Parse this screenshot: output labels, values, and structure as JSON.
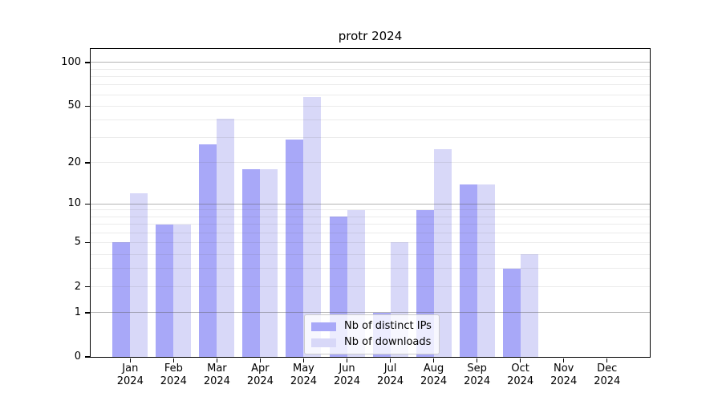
{
  "figure": {
    "title": "protr 2024",
    "background_color": "#ffffff"
  },
  "chart_data": {
    "type": "bar",
    "title": "protr 2024",
    "xlabel": "",
    "ylabel": "",
    "grid": true,
    "categories": [
      "Jan",
      "Feb",
      "Mar",
      "Apr",
      "May",
      "Jun",
      "Jul",
      "Aug",
      "Sep",
      "Oct",
      "Nov",
      "Dec"
    ],
    "x_tick_sublabel": "2024",
    "series": [
      {
        "name": "Nb of distinct IPs",
        "color": "#a8a8f8",
        "values": [
          5,
          7,
          27,
          18,
          29,
          8,
          1,
          9,
          14,
          3,
          0,
          0
        ]
      },
      {
        "name": "Nb of downloads",
        "color": "#d8d8f8",
        "values": [
          12,
          7,
          41,
          18,
          58,
          9,
          5,
          25,
          14,
          4,
          0,
          0
        ]
      }
    ],
    "y_axis": {
      "scale": "log10(1+value)",
      "tick_values": [
        0,
        1,
        2,
        5,
        10,
        20,
        50,
        100
      ],
      "max_value": 124,
      "major_grid_values": [
        1,
        10,
        100
      ],
      "minor_grid_values": [
        2,
        3,
        4,
        5,
        6,
        7,
        8,
        9,
        20,
        30,
        40,
        50,
        60,
        70,
        80,
        90
      ]
    },
    "legend_position": "bottom-center"
  }
}
